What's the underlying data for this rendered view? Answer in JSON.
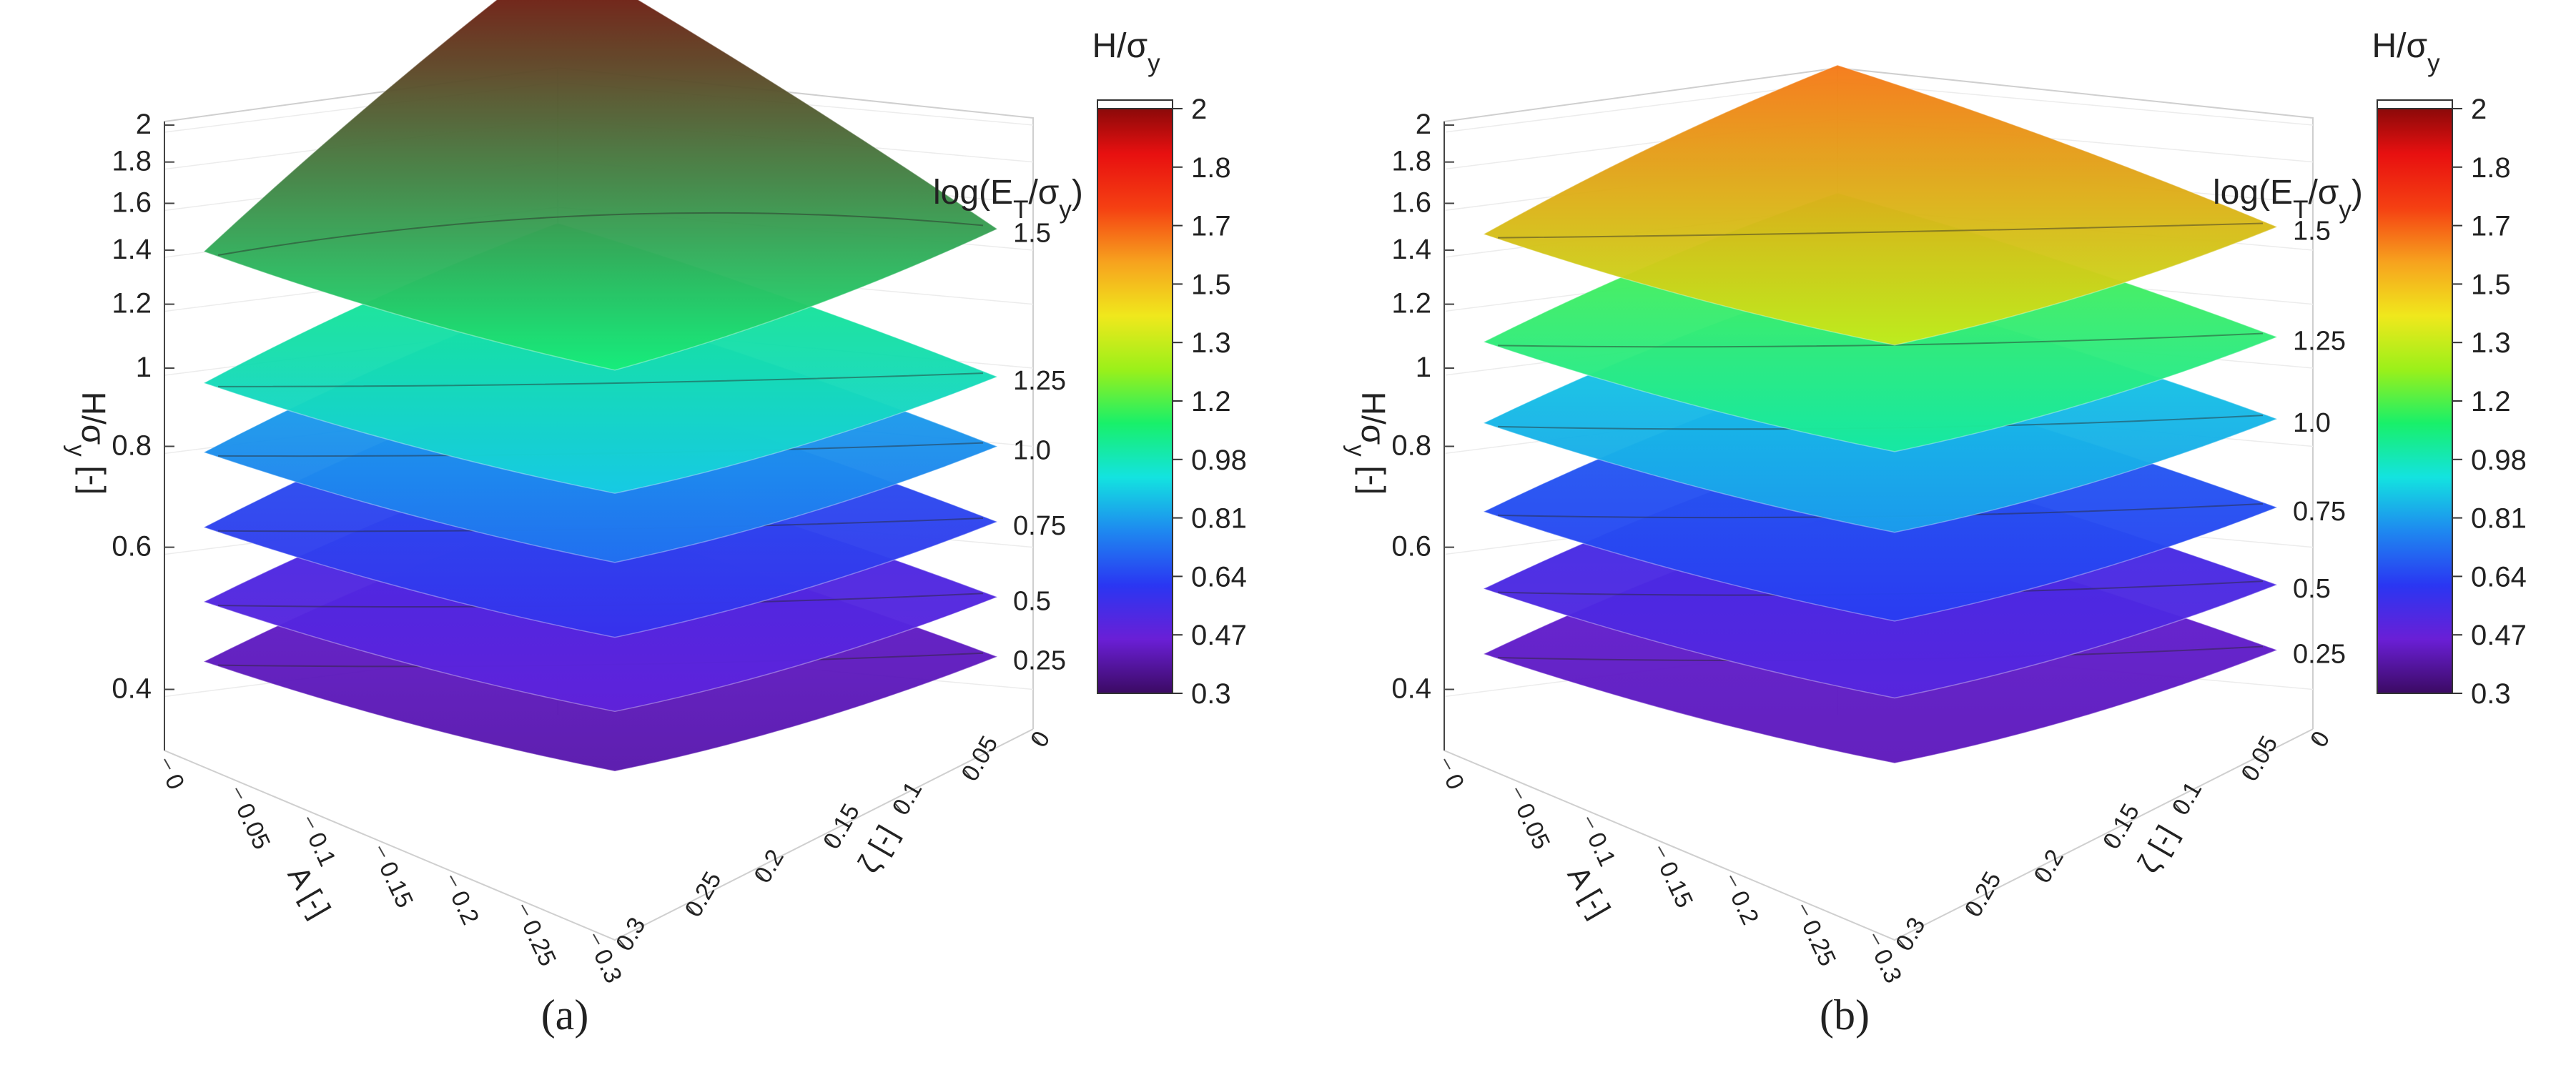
{
  "chart_data": [
    {
      "panel": "a",
      "caption": "(a)",
      "type": "surface3d",
      "zlabel": "H/σy [-]",
      "xlabel": "A [-]",
      "ylabel": "ζ [-]",
      "zticks": [
        "0.4",
        "0.6",
        "0.8",
        "1",
        "1.2",
        "1.4",
        "1.6",
        "1.8",
        "2"
      ],
      "xticks": [
        "0",
        "0.05",
        "0.1",
        "0.15",
        "0.2",
        "0.25",
        "0.3"
      ],
      "yticks": [
        "0",
        "0.05",
        "0.1",
        "0.15",
        "0.2",
        "0.25",
        "0.3"
      ],
      "zscale": "log",
      "zlim": [
        0.35,
        2.0
      ],
      "colorbar": {
        "title": "H/σy",
        "ticks": [
          "2",
          "1.8",
          "1.7",
          "1.5",
          "1.3",
          "1.2",
          "0.98",
          "0.81",
          "0.64",
          "0.47",
          "0.3"
        ],
        "range": [
          0.3,
          2.0
        ]
      },
      "legend_title": "log(ET/σy)",
      "layers": [
        {
          "label": "1.5",
          "value": 1.5,
          "z_min": 1.05,
          "z_max": 2.0,
          "z_avg": 1.35
        },
        {
          "label": "1.25",
          "value": 1.25,
          "z_min": 0.88,
          "z_max": 1.05,
          "z_avg": 0.95
        },
        {
          "label": "1.0",
          "value": 1.0,
          "z_min": 0.72,
          "z_max": 0.85,
          "z_avg": 0.78
        },
        {
          "label": "0.75",
          "value": 0.75,
          "z_min": 0.58,
          "z_max": 0.68,
          "z_avg": 0.63
        },
        {
          "label": "0.5",
          "value": 0.5,
          "z_min": 0.48,
          "z_max": 0.55,
          "z_avg": 0.51
        },
        {
          "label": "0.25",
          "value": 0.25,
          "z_min": 0.4,
          "z_max": 0.46,
          "z_avg": 0.43
        }
      ]
    },
    {
      "panel": "b",
      "caption": "(b)",
      "type": "surface3d",
      "zlabel": "H/σy [-]",
      "xlabel": "A [-]",
      "ylabel": "ζ [-]",
      "zticks": [
        "0.4",
        "0.6",
        "0.8",
        "1",
        "1.2",
        "1.4",
        "1.6",
        "1.8",
        "2"
      ],
      "xticks": [
        "0",
        "0.05",
        "0.1",
        "0.15",
        "0.2",
        "0.25",
        "0.3"
      ],
      "yticks": [
        "0",
        "0.05",
        "0.1",
        "0.15",
        "0.2",
        "0.25",
        "0.3"
      ],
      "zscale": "log",
      "zlim": [
        0.35,
        2.0
      ],
      "colorbar": {
        "title": "H/σy",
        "ticks": [
          "2",
          "1.8",
          "1.7",
          "1.5",
          "1.3",
          "1.2",
          "0.98",
          "0.81",
          "0.64",
          "0.47",
          "0.3"
        ],
        "range": [
          0.3,
          2.0
        ]
      },
      "legend_title": "log(ET/σy)",
      "layers": [
        {
          "label": "1.5",
          "value": 1.5,
          "z_min": 1.3,
          "z_max": 1.6,
          "z_avg": 1.45
        },
        {
          "label": "1.25",
          "value": 1.25,
          "z_min": 1.0,
          "z_max": 1.15,
          "z_avg": 1.07
        },
        {
          "label": "1.0",
          "value": 1.0,
          "z_min": 0.8,
          "z_max": 0.9,
          "z_avg": 0.85
        },
        {
          "label": "0.75",
          "value": 0.75,
          "z_min": 0.62,
          "z_max": 0.7,
          "z_avg": 0.66
        },
        {
          "label": "0.5",
          "value": 0.5,
          "z_min": 0.5,
          "z_max": 0.56,
          "z_avg": 0.53
        },
        {
          "label": "0.25",
          "value": 0.25,
          "z_min": 0.42,
          "z_max": 0.47,
          "z_avg": 0.44
        }
      ]
    }
  ],
  "colors": {
    "colormap": [
      "#3b0a63",
      "#6a1fd6",
      "#2a36f2",
      "#1e88f0",
      "#13e3e0",
      "#18f06a",
      "#9af01a",
      "#f0e81c",
      "#f7a21e",
      "#f54012",
      "#e81010",
      "#7a0808"
    ]
  }
}
